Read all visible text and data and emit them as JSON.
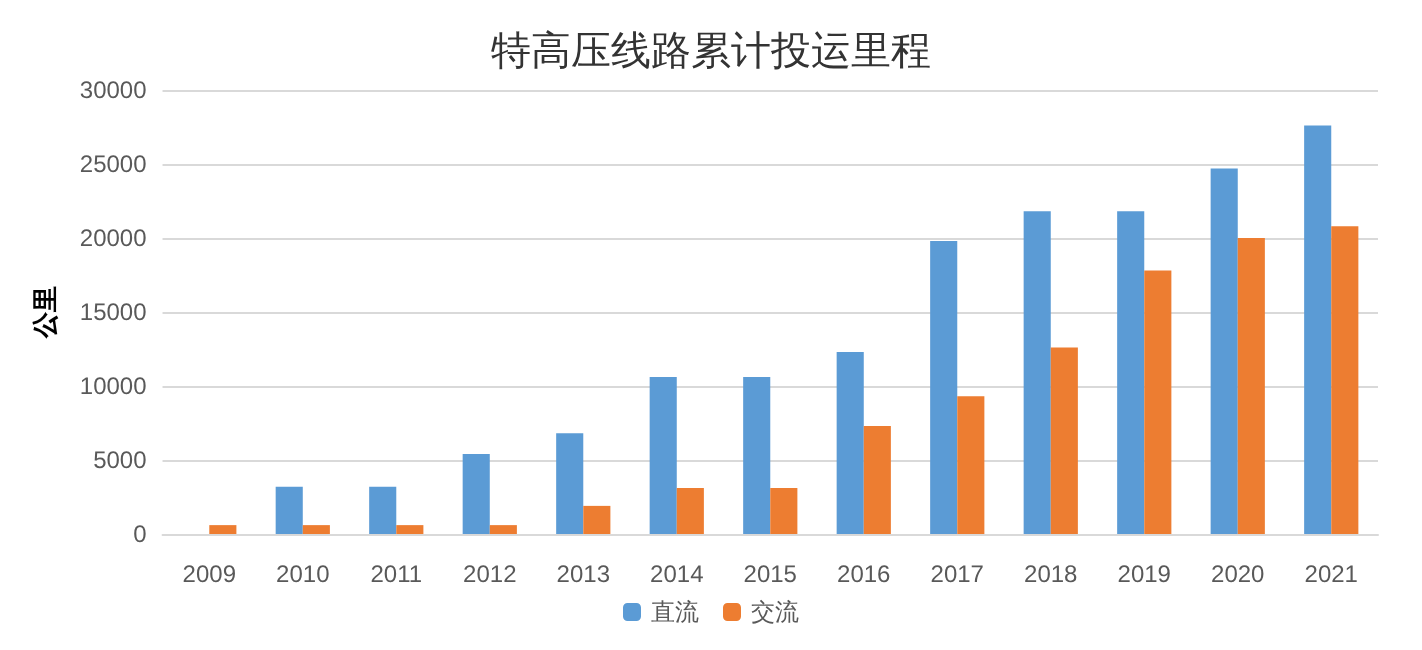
{
  "chart_data": {
    "type": "bar",
    "title": "特高压线路累计投运里程",
    "ylabel": "公里",
    "categories": [
      "2009",
      "2010",
      "2011",
      "2012",
      "2013",
      "2014",
      "2015",
      "2016",
      "2017",
      "2018",
      "2019",
      "2020",
      "2021"
    ],
    "series": [
      {
        "name": "直流",
        "color": "#5b9bd5",
        "values": [
          0,
          3200,
          3200,
          5400,
          6800,
          10600,
          10600,
          12300,
          19800,
          21800,
          21800,
          24700,
          27600
        ]
      },
      {
        "name": "交流",
        "color": "#ed7d31",
        "values": [
          600,
          600,
          600,
          600,
          1900,
          3100,
          3100,
          7300,
          9300,
          12600,
          17800,
          20000,
          20800
        ]
      }
    ],
    "ylim": [
      0,
      30000
    ],
    "yticks": [
      0,
      5000,
      10000,
      15000,
      20000,
      25000,
      30000
    ],
    "grid": "y",
    "legend": "bottom"
  }
}
